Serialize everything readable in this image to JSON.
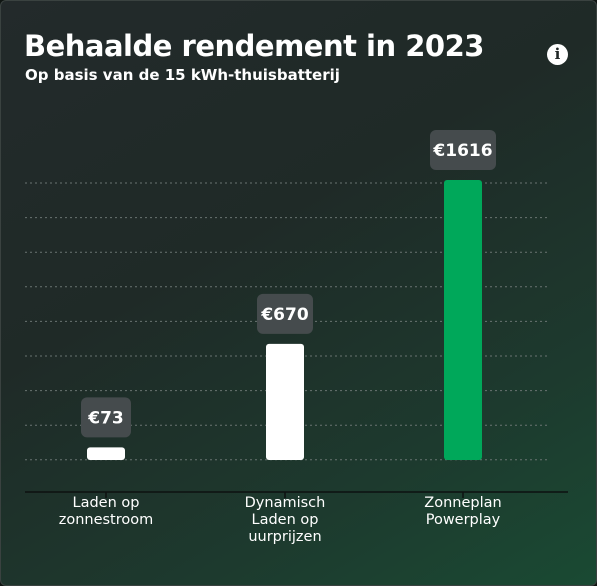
{
  "chart_data": {
    "type": "bar",
    "title": "Behaalde rendement in 2023",
    "subtitle": "Op basis van de 15 kWh-thuisbatterij",
    "categories": [
      [
        "Laden op",
        "zonnestroom"
      ],
      [
        "Dynamisch",
        "Laden op",
        "uurprijzen"
      ],
      [
        "Zonneplan",
        "Powerplay"
      ]
    ],
    "values": [
      73,
      670,
      1616
    ],
    "value_labels": [
      "€73",
      "€670",
      "€1616"
    ],
    "bar_colors": [
      "#ffffff",
      "#ffffff",
      "#00a85a"
    ],
    "ylim": [
      0,
      1616
    ],
    "grid": true,
    "legend": "none"
  },
  "info_icon": "info-icon"
}
